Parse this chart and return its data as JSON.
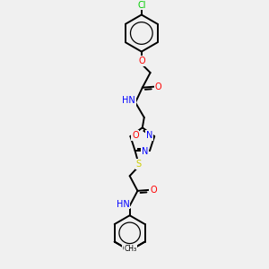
{
  "background_color": "#f0f0f0",
  "atom_colors": {
    "C": "#000000",
    "H": "#7f7f7f",
    "N": "#0000FF",
    "O": "#FF0000",
    "S": "#CCCC00",
    "Cl": "#00CC00"
  },
  "bond_color": "#000000",
  "bond_width": 1.4,
  "fig_width": 3.0,
  "fig_height": 3.0,
  "dpi": 100,
  "xlim": [
    -3.5,
    3.5
  ],
  "ylim": [
    -7.5,
    7.5
  ]
}
